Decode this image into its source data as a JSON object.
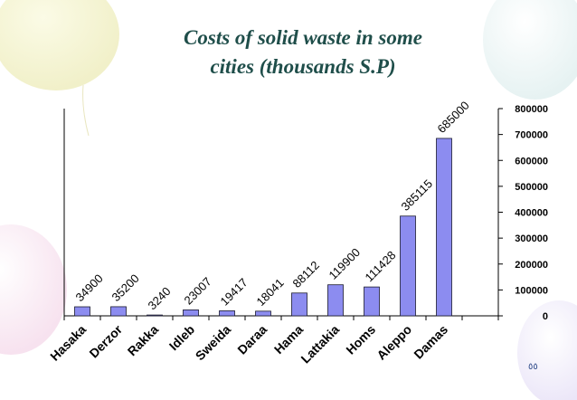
{
  "slide": {
    "title_line1": "Costs of solid waste in some",
    "title_line2": "cities (thousands S.P)",
    "page_number": "٥٥",
    "colors": {
      "title": "#1f4e4a",
      "bar_fill": "#8c8cf0",
      "bar_stroke": "#1a1a2e",
      "text": "#000000",
      "page_number": "#2e4a8a"
    }
  },
  "chart_data": {
    "type": "bar",
    "title": "Costs of solid waste in some cities (thousands S.P)",
    "xlabel": "",
    "ylabel": "",
    "categories": [
      "Hasaka",
      "Derzor",
      "Rakka",
      "Idleb",
      "Sweida",
      "Daraa",
      "Hama",
      "Lattakia",
      "Homs",
      "Aleppo",
      "Damas"
    ],
    "values": [
      34900,
      35200,
      3240,
      23007,
      19417,
      18041,
      88112,
      119900,
      111428,
      385115,
      685000
    ],
    "data_labels": [
      "34900",
      "35200",
      "3240",
      "23007",
      "19417",
      "18041",
      "88112",
      "119900",
      "111428",
      "385115",
      "685000"
    ],
    "ylim": [
      0,
      800000
    ],
    "yticks": [
      0,
      100000,
      200000,
      300000,
      400000,
      500000,
      600000,
      700000,
      800000
    ],
    "ytick_labels": [
      "0",
      "100000",
      "200000",
      "300000",
      "400000",
      "500000",
      "600000",
      "700000",
      "800000"
    ],
    "y_axis_side": "right",
    "grid": false,
    "legend": "none"
  }
}
